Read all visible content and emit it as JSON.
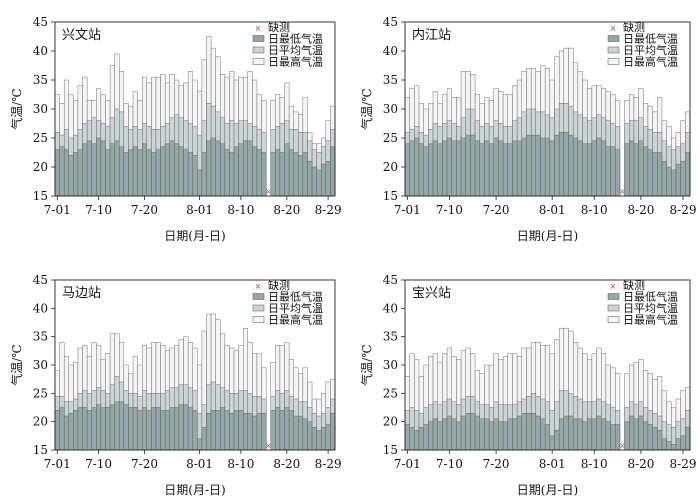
{
  "chart_data": [
    {
      "type": "bar",
      "title": "兴文站",
      "xlabel": "日期(月-日)",
      "ylabel": "气温/℃",
      "ylim": [
        15,
        45
      ],
      "yticks": [
        15,
        20,
        25,
        30,
        35,
        40,
        45
      ],
      "xtick_labels": [
        "7-01",
        "7-10",
        "7-20",
        "8-01",
        "8-10",
        "8-20",
        "8-29"
      ],
      "xtick_days": [
        1,
        10,
        20,
        32,
        41,
        51,
        60
      ],
      "missing_day": 47,
      "legend": [
        "缺测",
        "日最低气温",
        "日平均气温",
        "日最高气温"
      ],
      "series": [
        {
          "name": "日最低气温",
          "values": [
            23,
            23.5,
            23,
            22,
            22.5,
            23,
            24,
            24.5,
            24,
            25,
            24.5,
            23,
            24,
            24.5,
            23.5,
            22.5,
            23,
            23.5,
            23,
            24,
            23,
            22.5,
            23,
            23.5,
            24,
            24.5,
            24,
            23.5,
            23,
            22.5,
            22,
            19.5,
            22.5,
            24.5,
            25,
            24.5,
            24,
            23,
            22.5,
            23.5,
            24,
            24.5,
            24.5,
            23.5,
            23,
            22.5,
            null,
            22.5,
            23,
            22.5,
            24,
            23,
            22.5,
            22,
            22.5,
            21,
            20,
            19.5,
            20.5,
            21,
            23.5
          ]
        },
        {
          "name": "日平均气温",
          "values": [
            26,
            25.5,
            26.5,
            25,
            25.5,
            26.5,
            27.5,
            28,
            28.5,
            28,
            27.5,
            27,
            28.5,
            30,
            29.5,
            27,
            26.5,
            27,
            26.5,
            27.5,
            27,
            26.5,
            26.5,
            27,
            27.5,
            28.5,
            29,
            28.5,
            28,
            27.5,
            27,
            25.5,
            28,
            31,
            30.5,
            29.5,
            28.5,
            27.5,
            28,
            27.5,
            28,
            28,
            27.5,
            27,
            26.5,
            26,
            null,
            26.5,
            27,
            27.5,
            28,
            26.5,
            26.5,
            26,
            26,
            24.5,
            23,
            22.5,
            23.5,
            24.5,
            26.5
          ]
        },
        {
          "name": "日最高气温",
          "values": [
            32.5,
            31,
            35,
            32.5,
            31.5,
            34,
            35.5,
            31.5,
            31.5,
            33.5,
            32.5,
            31.5,
            37.5,
            39.5,
            36.5,
            31,
            30.5,
            33,
            31.5,
            35.5,
            34.5,
            35.5,
            35.5,
            36,
            34.5,
            36,
            35,
            34,
            34.5,
            36.5,
            35,
            33,
            38.5,
            42.5,
            40.5,
            39,
            36,
            35.5,
            36.5,
            35,
            35.5,
            35.5,
            36.5,
            35,
            32.5,
            31.5,
            null,
            31.5,
            32.5,
            32,
            34.5,
            30.5,
            29.5,
            29,
            32,
            26,
            24,
            24,
            25,
            28,
            30.5
          ]
        }
      ]
    },
    {
      "type": "bar",
      "title": "内江站",
      "xlabel": "日期(月-日)",
      "ylabel": "气温/℃",
      "ylim": [
        15,
        45
      ],
      "yticks": [
        15,
        20,
        25,
        30,
        35,
        40,
        45
      ],
      "xtick_labels": [
        "7-01",
        "7-10",
        "7-20",
        "8-01",
        "8-10",
        "8-20",
        "8-29"
      ],
      "xtick_days": [
        1,
        10,
        20,
        32,
        41,
        51,
        60
      ],
      "missing_day": 47,
      "legend": [
        "缺测",
        "日最低气温",
        "日平均气温",
        "日最高气温"
      ],
      "series": [
        {
          "name": "日最低气温",
          "values": [
            24,
            24.5,
            25,
            24,
            23.5,
            24,
            24.5,
            24,
            24.5,
            25,
            24.5,
            24.5,
            25,
            25.5,
            25.5,
            24.5,
            24,
            24.5,
            24,
            25,
            24.5,
            24,
            24,
            24.5,
            24.5,
            25,
            25.5,
            25.5,
            25.5,
            25,
            25,
            24.5,
            25.5,
            26,
            26,
            25.5,
            25,
            24.5,
            24,
            24,
            24.5,
            25,
            24.5,
            23.5,
            23.5,
            23,
            null,
            24,
            24.5,
            24,
            24.5,
            23.5,
            23,
            22.5,
            22.5,
            21,
            20,
            19.5,
            20.5,
            21,
            22.5
          ]
        },
        {
          "name": "日平均气温",
          "values": [
            26,
            26.5,
            27,
            26,
            25.5,
            26.5,
            27.5,
            27,
            27.5,
            28,
            27.5,
            27,
            28.5,
            30,
            30,
            28,
            27,
            27.5,
            27,
            28,
            27.5,
            27,
            27,
            28,
            28.5,
            29.5,
            30,
            30,
            29.5,
            29.5,
            29,
            28.5,
            30,
            31,
            31,
            30.5,
            29.5,
            29,
            28.5,
            28,
            28.5,
            29,
            28.5,
            28,
            27.5,
            27,
            null,
            27.5,
            28,
            28,
            28.5,
            27,
            26.5,
            26,
            26,
            24.5,
            23.5,
            23,
            23.5,
            24,
            26
          ]
        },
        {
          "name": "日最高气温",
          "values": [
            32,
            33.5,
            34,
            31,
            30,
            31,
            33,
            31,
            32.5,
            33.5,
            32,
            32,
            36.5,
            36.5,
            36,
            32.5,
            31,
            32,
            31.5,
            33.5,
            33,
            32.5,
            32.5,
            34,
            35,
            36.5,
            37,
            37,
            36.5,
            37.5,
            37,
            35,
            39,
            40,
            40.5,
            40.5,
            38,
            36.5,
            35,
            33.5,
            34,
            34,
            33.5,
            33,
            32.5,
            31.5,
            null,
            31.5,
            32.5,
            32,
            33.5,
            31,
            30.5,
            29.5,
            32,
            28,
            27,
            25,
            26,
            28,
            29.5
          ]
        }
      ]
    },
    {
      "type": "bar",
      "title": "马边站",
      "xlabel": "日期(月-日)",
      "ylabel": "气温/℃",
      "ylim": [
        15,
        45
      ],
      "yticks": [
        15,
        20,
        25,
        30,
        35,
        40,
        45
      ],
      "xtick_labels": [
        "7-01",
        "7-10",
        "7-20",
        "8-01",
        "8-10",
        "8-20",
        "8-29"
      ],
      "xtick_days": [
        1,
        10,
        20,
        32,
        41,
        51,
        60
      ],
      "missing_day": 47,
      "legend": [
        "缺测",
        "日最低气温",
        "日平均气温",
        "日最高气温"
      ],
      "series": [
        {
          "name": "日最低气温",
          "values": [
            22,
            22.5,
            21,
            21.5,
            22,
            22.5,
            22.5,
            22,
            22.5,
            23,
            22.5,
            22.5,
            23,
            23.5,
            23.5,
            23,
            22.5,
            22.5,
            22,
            22.5,
            22,
            22.5,
            22.5,
            22,
            22,
            22.5,
            22.5,
            23,
            23,
            22.5,
            22,
            17,
            19,
            21.5,
            22,
            22,
            22.5,
            22,
            21.5,
            22,
            22,
            21.5,
            21.5,
            21,
            21.5,
            21.5,
            null,
            22,
            22.5,
            22,
            22.5,
            22,
            21,
            21,
            20.5,
            20,
            19,
            18.5,
            19,
            19.5,
            21.5
          ]
        },
        {
          "name": "日平均气温",
          "values": [
            24.5,
            24.5,
            23.5,
            23.5,
            24,
            25,
            25.5,
            25,
            25.5,
            26,
            25.5,
            25,
            26.5,
            28,
            27,
            25.5,
            25,
            25,
            24.5,
            25.5,
            25,
            25,
            25,
            25,
            25.5,
            26,
            26,
            26.5,
            26.5,
            26,
            25.5,
            21.5,
            23,
            26.5,
            27,
            26.5,
            26,
            25.5,
            25,
            25,
            25.5,
            25.5,
            25,
            24.5,
            24.5,
            24,
            null,
            24.5,
            25.5,
            25,
            25.5,
            24.5,
            24,
            23.5,
            23.5,
            22.5,
            21.5,
            21,
            21.5,
            22.5,
            24
          ]
        },
        {
          "name": "日最高气温",
          "values": [
            29,
            34,
            31.5,
            30,
            30.5,
            33,
            33.5,
            31.5,
            34,
            33.5,
            31,
            32,
            35.5,
            35.5,
            34,
            30,
            28.5,
            31.5,
            30,
            33.5,
            33,
            34,
            34,
            33.5,
            32.5,
            33,
            33.5,
            34.5,
            35,
            34,
            33,
            30,
            36,
            39,
            39,
            38,
            35.5,
            33.5,
            33,
            32.5,
            33.5,
            36.5,
            34,
            32,
            32,
            29.5,
            null,
            30.5,
            33.5,
            33.5,
            34,
            31,
            29.5,
            28.5,
            29.5,
            27,
            24,
            24,
            25,
            27,
            27.5
          ]
        }
      ]
    },
    {
      "type": "bar",
      "title": "宝兴站",
      "xlabel": "日期(月-日)",
      "ylabel": "气温/℃",
      "ylim": [
        15,
        45
      ],
      "yticks": [
        15,
        20,
        25,
        30,
        35,
        40,
        45
      ],
      "xtick_labels": [
        "7-01",
        "7-10",
        "7-20",
        "8-01",
        "8-10",
        "8-20",
        "8-29"
      ],
      "xtick_days": [
        1,
        10,
        20,
        32,
        41,
        51,
        60
      ],
      "missing_day": 47,
      "legend": [
        "缺测",
        "日最低气温",
        "日平均气温",
        "日最高气温"
      ],
      "series": [
        {
          "name": "日最低气温",
          "values": [
            19.5,
            19,
            18.5,
            19,
            19.5,
            20,
            20.5,
            20,
            20.5,
            21,
            20.5,
            20,
            21,
            21.5,
            21.5,
            21,
            20.5,
            20.5,
            20,
            20.5,
            20,
            20,
            20.5,
            20.5,
            21,
            21.5,
            21.5,
            21.5,
            21,
            20.5,
            19.5,
            17.5,
            18.5,
            20.5,
            21,
            21,
            20.5,
            20.5,
            20,
            20.5,
            20.5,
            21,
            20.5,
            20,
            19.5,
            19.5,
            null,
            20,
            21,
            20.5,
            21,
            20,
            19.5,
            19,
            18.5,
            17,
            16.5,
            16,
            17,
            17.5,
            19
          ]
        },
        {
          "name": "日平均气温",
          "values": [
            22,
            22.5,
            22,
            21.5,
            22.5,
            23,
            23.5,
            23,
            23.5,
            24,
            23.5,
            23,
            24,
            24.5,
            24.5,
            23.5,
            23,
            23,
            22.5,
            23.5,
            23,
            23,
            23,
            23,
            23.5,
            24,
            24.5,
            25,
            24.5,
            24,
            23.5,
            22,
            23.5,
            25.5,
            25.5,
            25,
            24.5,
            24,
            23.5,
            23.5,
            23.5,
            24,
            23.5,
            23,
            22.5,
            22,
            null,
            22.5,
            23.5,
            23,
            23.5,
            22.5,
            22,
            21.5,
            21,
            20,
            19.5,
            19,
            20,
            20.5,
            22
          ]
        },
        {
          "name": "日最高气温",
          "values": [
            28,
            32,
            31,
            28,
            30,
            31.5,
            32,
            30.5,
            32,
            33,
            31.5,
            31,
            32.5,
            33,
            32,
            29,
            28.5,
            30,
            30,
            32,
            31,
            31.5,
            32,
            32,
            31.5,
            33,
            33,
            34,
            34,
            33.5,
            33.5,
            32,
            34.5,
            36.5,
            36.5,
            36,
            34,
            33,
            32,
            31,
            32,
            33,
            32,
            30,
            29.5,
            28.5,
            null,
            28.5,
            30,
            30.5,
            31,
            29,
            28.5,
            27.5,
            28,
            25.5,
            23.5,
            22.5,
            24,
            25.5,
            26
          ]
        }
      ]
    }
  ],
  "colors": {
    "min": "#94a8a8",
    "mean": "#cbd5d5",
    "max": "#f5f5f5",
    "edge": "#555555",
    "missing": "#c0392b"
  }
}
